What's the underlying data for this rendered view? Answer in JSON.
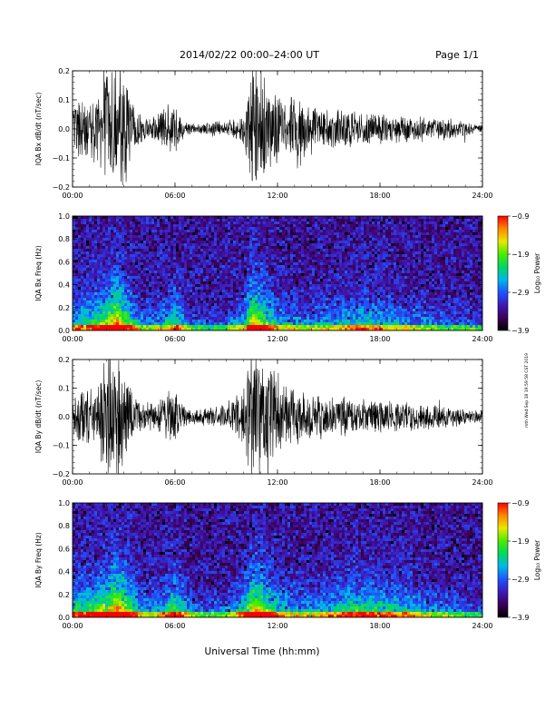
{
  "header": {
    "title": "2014/02/22  00:00–24:00 UT",
    "page": "Page 1/1"
  },
  "stamp": "mth Wed Sep 18 19:59:58 CST 2019",
  "x_axis_title": "Universal Time (hh:mm)",
  "chart_data": [
    {
      "type": "line",
      "title": "",
      "ylabel": "IQA Bx dB/dt (nT/sec)",
      "xlabel": "",
      "xlim": [
        "00:00",
        "24:00"
      ],
      "x_ticks": [
        "00:00",
        "06:00",
        "12:00",
        "18:00",
        "24:00"
      ],
      "ylim": [
        -0.2,
        0.2
      ],
      "y_ticks": [
        "0.2",
        "0.1",
        "0.0",
        "−0.1",
        "−0.2"
      ],
      "color": "#000000",
      "series": [
        {
          "x_hours": [
            0,
            0.5,
            1,
            1.5,
            2,
            2.5,
            3,
            3.5,
            4,
            4.5,
            5,
            5.5,
            6,
            6.5,
            7,
            7.5,
            8,
            8.5,
            9,
            9.5,
            10,
            10.5,
            11,
            11.5,
            12,
            12.5,
            13,
            13.5,
            14,
            14.5,
            15,
            15.5,
            16,
            16.5,
            17,
            17.5,
            18,
            18.5,
            19,
            19.5,
            20,
            20.5,
            21,
            21.5,
            22,
            22.5,
            23,
            23.5,
            24
          ],
          "amplitude": [
            0.1,
            0.12,
            0.14,
            0.12,
            0.25,
            0.25,
            0.25,
            0.1,
            0.05,
            0.04,
            0.07,
            0.09,
            0.12,
            0.03,
            0.02,
            0.02,
            0.03,
            0.03,
            0.03,
            0.04,
            0.06,
            0.25,
            0.25,
            0.18,
            0.2,
            0.1,
            0.16,
            0.12,
            0.09,
            0.08,
            0.08,
            0.08,
            0.07,
            0.07,
            0.07,
            0.06,
            0.06,
            0.06,
            0.05,
            0.05,
            0.05,
            0.05,
            0.04,
            0.04,
            0.04,
            0.03,
            0.03,
            0.02,
            0.02
          ]
        }
      ]
    },
    {
      "type": "heatmap",
      "title": "",
      "ylabel": "IQA Bx Freq (Hz)",
      "xlabel": "",
      "xlim": [
        "00:00",
        "24:00"
      ],
      "x_ticks": [
        "00:00",
        "06:00",
        "12:00",
        "18:00",
        "24:00"
      ],
      "ylim": [
        0,
        1.0
      ],
      "y_ticks": [
        "1.0",
        "0.8",
        "0.6",
        "0.4",
        "0.2",
        "0.0"
      ],
      "colorbar": {
        "label": "Log₁₀ Power",
        "range": [
          -3.9,
          -0.9
        ],
        "ticks": [
          "−0.9",
          "−1.9",
          "−2.9",
          "−3.9"
        ],
        "colors": [
          "#000000",
          "#3c0058",
          "#3d1ab8",
          "#1d54ff",
          "#00b8e8",
          "#00d860",
          "#4bea00",
          "#e8e800",
          "#ff8800",
          "#ff0000"
        ]
      },
      "enhancement_hours": [
        0,
        1,
        2,
        2.5,
        3,
        4,
        5,
        6,
        7,
        8,
        9,
        10,
        10.5,
        11,
        12,
        13,
        14,
        15,
        16,
        17,
        18,
        19,
        20,
        21,
        22,
        23,
        24
      ],
      "enhancement_level": [
        0.5,
        0.55,
        0.7,
        0.95,
        0.75,
        0.35,
        0.35,
        0.6,
        0.25,
        0.2,
        0.25,
        0.45,
        0.85,
        0.75,
        0.45,
        0.35,
        0.35,
        0.4,
        0.45,
        0.5,
        0.45,
        0.4,
        0.35,
        0.3,
        0.25,
        0.25,
        0.2
      ]
    },
    {
      "type": "line",
      "title": "",
      "ylabel": "IQA By dB/dt (nT/sec)",
      "xlabel": "",
      "xlim": [
        "00:00",
        "24:00"
      ],
      "x_ticks": [
        "00:00",
        "06:00",
        "12:00",
        "18:00",
        "24:00"
      ],
      "ylim": [
        -0.2,
        0.2
      ],
      "y_ticks": [
        "0.2",
        "0.1",
        "0.0",
        "−0.1",
        "−0.2"
      ],
      "color": "#000000",
      "series": [
        {
          "x_hours": [
            0,
            0.5,
            1,
            1.5,
            2,
            2.5,
            3,
            3.5,
            4,
            4.5,
            5,
            5.5,
            6,
            6.5,
            7,
            7.5,
            8,
            8.5,
            9,
            9.5,
            10,
            10.5,
            11,
            11.5,
            12,
            12.5,
            13,
            13.5,
            14,
            14.5,
            15,
            15.5,
            16,
            16.5,
            17,
            17.5,
            18,
            18.5,
            19,
            19.5,
            20,
            20.5,
            21,
            21.5,
            22,
            22.5,
            23,
            23.5,
            24
          ],
          "amplitude": [
            0.1,
            0.12,
            0.11,
            0.12,
            0.25,
            0.25,
            0.25,
            0.1,
            0.06,
            0.05,
            0.06,
            0.1,
            0.12,
            0.04,
            0.03,
            0.03,
            0.04,
            0.04,
            0.05,
            0.08,
            0.12,
            0.25,
            0.25,
            0.2,
            0.16,
            0.12,
            0.12,
            0.1,
            0.09,
            0.09,
            0.08,
            0.08,
            0.08,
            0.07,
            0.07,
            0.07,
            0.07,
            0.06,
            0.06,
            0.06,
            0.05,
            0.05,
            0.05,
            0.05,
            0.04,
            0.04,
            0.03,
            0.03,
            0.03
          ]
        }
      ]
    },
    {
      "type": "heatmap",
      "title": "",
      "ylabel": "IQA By Freq (Hz)",
      "xlabel": "",
      "xlim": [
        "00:00",
        "24:00"
      ],
      "x_ticks": [
        "00:00",
        "06:00",
        "12:00",
        "18:00",
        "24:00"
      ],
      "ylim": [
        0,
        1.0
      ],
      "y_ticks": [
        "1.0",
        "0.8",
        "0.6",
        "0.4",
        "0.2",
        "0.0"
      ],
      "colorbar": {
        "label": "Log₁₀ Power",
        "range": [
          -3.9,
          -0.9
        ],
        "ticks": [
          "−0.9",
          "−1.9",
          "−2.9",
          "−3.9"
        ],
        "colors": [
          "#000000",
          "#3c0058",
          "#3d1ab8",
          "#1d54ff",
          "#00b8e8",
          "#00d860",
          "#4bea00",
          "#e8e800",
          "#ff8800",
          "#ff0000"
        ]
      },
      "enhancement_hours": [
        0,
        1,
        2,
        2.5,
        3,
        4,
        5,
        6,
        7,
        8,
        9,
        10,
        10.5,
        11,
        12,
        13,
        14,
        15,
        16,
        17,
        18,
        19,
        20,
        21,
        22,
        23,
        24
      ],
      "enhancement_level": [
        0.55,
        0.6,
        0.75,
        0.95,
        0.8,
        0.4,
        0.4,
        0.65,
        0.3,
        0.25,
        0.3,
        0.5,
        0.85,
        0.8,
        0.5,
        0.4,
        0.4,
        0.45,
        0.55,
        0.6,
        0.55,
        0.5,
        0.45,
        0.35,
        0.3,
        0.25,
        0.2
      ]
    }
  ]
}
